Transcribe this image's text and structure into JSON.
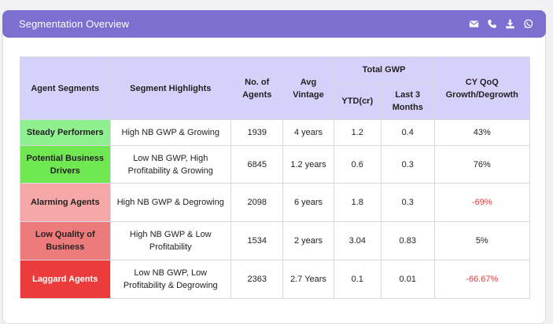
{
  "header": {
    "title": "Segmentation Overview",
    "icons": [
      "mail-icon",
      "phone-icon",
      "download-icon",
      "whatsapp-icon"
    ]
  },
  "table": {
    "headers": {
      "segments": "Agent Segments",
      "highlights": "Segment Highlights",
      "agents": "No. of Agents",
      "vintage": "Avg Vintage",
      "total_gwp": "Total GWP",
      "ytd": "YTD(cr)",
      "last3": "Last 3 Months",
      "cy": "CY QoQ Growth/Degrowth"
    },
    "rows": [
      {
        "segment": "Steady Performers",
        "highlight": "High NB GWP & Growing",
        "agents": "1939",
        "vintage": "4 years",
        "ytd": "1.2",
        "last3": "0.4",
        "cy": "43%",
        "color": "#8ef08e"
      },
      {
        "segment": "Potential Business Drivers",
        "highlight": "Low NB GWP, High Profitability & Growing",
        "agents": "6845",
        "vintage": "1.2 years",
        "ytd": "0.6",
        "last3": "0.3",
        "cy": "76%",
        "color": "#6fe852"
      },
      {
        "segment": "Alarming Agents",
        "highlight": "High NB GWP & Degrowing",
        "agents": "2098",
        "vintage": "6 years",
        "ytd": "1.8",
        "last3": "0.3",
        "cy": "-69%",
        "color": "#f6a7a7"
      },
      {
        "segment": "Low Quality of Business",
        "highlight": "High NB GWP & Low Profitability",
        "agents": "1534",
        "vintage": "2 years",
        "ytd": "3.04",
        "last3": "0.83",
        "cy": "5%",
        "color": "#ee7b7b"
      },
      {
        "segment": "Laggard Agents",
        "highlight": "Low NB GWP, Low Profitability & Degrowing",
        "agents": "2363",
        "vintage": "2.7 Years",
        "ytd": "0.1",
        "last3": "0.01",
        "cy": "-66.67%",
        "color": "#ec3b3b"
      }
    ]
  },
  "colors": {
    "header_bg": "#7b6fd0",
    "table_header_bg": "#d6d1fa",
    "negative": "#e03b3b"
  }
}
